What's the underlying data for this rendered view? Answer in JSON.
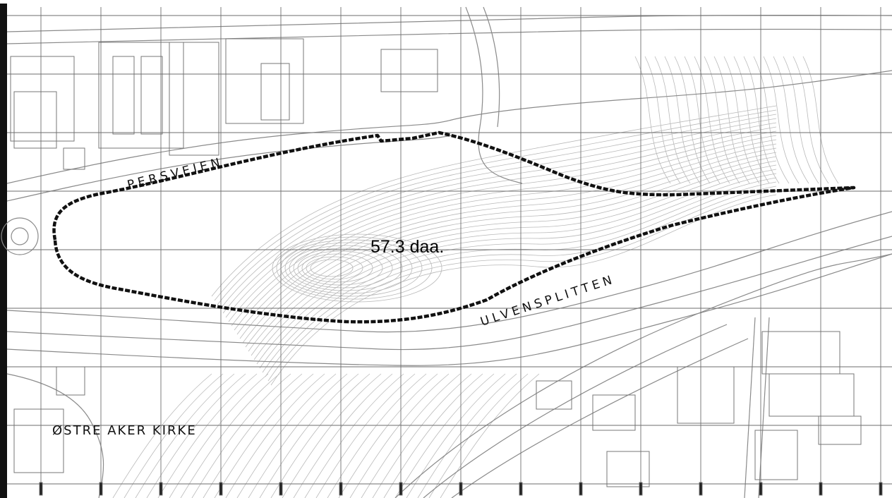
{
  "map": {
    "area_label": "57.3 daa.",
    "road_labels": {
      "persveien": "PERSVEIEN",
      "ulvensplitten": "ULVENSPLITTEN",
      "church": "ØSTRE AKER KIRKE"
    },
    "colors": {
      "boundary": "#111111",
      "grid": "#6e6e6e",
      "contour": "#b4b4b4",
      "road": "#888888"
    }
  }
}
